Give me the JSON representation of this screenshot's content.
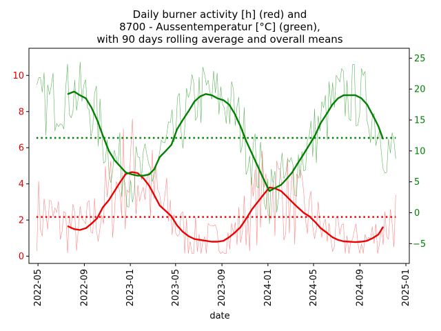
{
  "chart_data": {
    "type": "line",
    "title_lines": [
      "Daily burner activity [h] (red) and",
      "8700 - Aussentemperatur [°C] (green),",
      "with 90 days rolling average and overall means"
    ],
    "xlabel": "date",
    "x_ticks": [
      "2022-05",
      "2022-09",
      "2023-01",
      "2023-05",
      "2023-09",
      "2024-01",
      "2024-05",
      "2024-09",
      "2025-01"
    ],
    "x_range": [
      "2022-04-07",
      "2025-01-10"
    ],
    "y_left": {
      "ticks": [
        0,
        2,
        4,
        6,
        8,
        10
      ],
      "range": [
        -0.4,
        11.5
      ],
      "color": "#dd0000"
    },
    "y_right": {
      "ticks": [
        -5,
        0,
        5,
        10,
        15,
        20,
        25
      ],
      "range": [
        -8.2,
        26.6
      ],
      "color": "#008000"
    },
    "series": [
      {
        "name": "burner rolling average",
        "axis": "left",
        "color": "#ee0000",
        "x": [
          "2022-07-20",
          "2022-08-05",
          "2022-08-20",
          "2022-09-05",
          "2022-09-20",
          "2022-10-05",
          "2022-10-20",
          "2022-11-05",
          "2022-11-20",
          "2022-12-05",
          "2022-12-20",
          "2023-01-05",
          "2023-01-20",
          "2023-02-05",
          "2023-02-20",
          "2023-03-05",
          "2023-03-20",
          "2023-04-05",
          "2023-04-20",
          "2023-05-05",
          "2023-05-20",
          "2023-06-05",
          "2023-06-20",
          "2023-07-05",
          "2023-07-20",
          "2023-08-05",
          "2023-08-20",
          "2023-09-05",
          "2023-09-20",
          "2023-10-05",
          "2023-10-20",
          "2023-11-05",
          "2023-11-20",
          "2023-12-05",
          "2023-12-20",
          "2024-01-05",
          "2024-01-20",
          "2024-02-05",
          "2024-02-20",
          "2024-03-05",
          "2024-03-20",
          "2024-04-05",
          "2024-04-20",
          "2024-05-05",
          "2024-05-20",
          "2024-06-05",
          "2024-06-20",
          "2024-07-05",
          "2024-07-20",
          "2024-08-05",
          "2024-08-20",
          "2024-09-05",
          "2024-09-20",
          "2024-10-05",
          "2024-10-20",
          "2024-11-01"
        ],
        "y": [
          1.65,
          1.5,
          1.45,
          1.55,
          1.8,
          2.1,
          2.7,
          3.1,
          3.6,
          4.1,
          4.55,
          4.65,
          4.6,
          4.3,
          3.9,
          3.4,
          2.8,
          2.5,
          2.2,
          1.7,
          1.35,
          1.1,
          0.95,
          0.9,
          0.85,
          0.8,
          0.8,
          0.85,
          1.05,
          1.3,
          1.6,
          2.1,
          2.6,
          3.0,
          3.4,
          3.8,
          3.75,
          3.6,
          3.3,
          3.0,
          2.7,
          2.4,
          2.2,
          1.9,
          1.55,
          1.3,
          1.05,
          0.9,
          0.82,
          0.8,
          0.78,
          0.8,
          0.85,
          1.0,
          1.2,
          1.6
        ]
      },
      {
        "name": "temperature rolling average",
        "axis": "right",
        "color": "#008000",
        "x": [
          "2022-07-20",
          "2022-08-05",
          "2022-08-20",
          "2022-09-05",
          "2022-09-20",
          "2022-10-05",
          "2022-10-20",
          "2022-11-05",
          "2022-11-20",
          "2022-12-05",
          "2022-12-20",
          "2023-01-05",
          "2023-01-20",
          "2023-02-05",
          "2023-02-20",
          "2023-03-05",
          "2023-03-20",
          "2023-04-05",
          "2023-04-20",
          "2023-05-05",
          "2023-05-20",
          "2023-06-05",
          "2023-06-20",
          "2023-07-05",
          "2023-07-20",
          "2023-08-05",
          "2023-08-20",
          "2023-09-05",
          "2023-09-20",
          "2023-10-05",
          "2023-10-20",
          "2023-11-05",
          "2023-11-20",
          "2023-12-05",
          "2023-12-20",
          "2024-01-05",
          "2024-01-20",
          "2024-02-05",
          "2024-02-20",
          "2024-03-05",
          "2024-03-20",
          "2024-04-05",
          "2024-04-20",
          "2024-05-05",
          "2024-05-20",
          "2024-06-05",
          "2024-06-20",
          "2024-07-05",
          "2024-07-20",
          "2024-08-05",
          "2024-08-20",
          "2024-09-05",
          "2024-09-20",
          "2024-10-05",
          "2024-10-20",
          "2024-11-01"
        ],
        "y": [
          19.2,
          19.6,
          19.0,
          18.5,
          17.0,
          15.0,
          12.5,
          10.0,
          8.5,
          7.5,
          6.5,
          6.2,
          6.0,
          6.0,
          6.2,
          7.0,
          9.0,
          10.0,
          11.0,
          13.5,
          15.0,
          16.5,
          18.0,
          18.8,
          19.2,
          19.0,
          18.5,
          18.2,
          17.5,
          16.0,
          14.0,
          11.5,
          9.5,
          7.5,
          5.5,
          3.5,
          4.0,
          4.5,
          5.5,
          6.5,
          8.0,
          9.5,
          11.0,
          12.5,
          14.5,
          16.0,
          17.5,
          18.5,
          19.0,
          19.0,
          19.0,
          18.5,
          17.5,
          15.8,
          14.0,
          12.0
        ]
      },
      {
        "name": "burner overall mean",
        "axis": "left",
        "style": "dotted",
        "color": "#ee0000",
        "x": [
          "2022-04-27",
          "2024-12-05"
        ],
        "y": [
          2.17,
          2.17
        ]
      },
      {
        "name": "temperature overall mean",
        "axis": "right",
        "style": "dotted",
        "color": "#008000",
        "x": [
          "2022-04-27",
          "2024-12-05"
        ],
        "y": [
          12.1,
          12.1
        ]
      }
    ],
    "daily_series": [
      {
        "name": "burner daily",
        "axis": "left",
        "color": "#ff6666",
        "x_start": "2022-04-28",
        "x_end": "2024-12-05",
        "samples": 200
      },
      {
        "name": "temperature daily",
        "axis": "right",
        "color": "#33a033",
        "x_start": "2022-04-28",
        "x_end": "2024-12-05",
        "samples": 200
      }
    ],
    "grid": false,
    "legend": "none"
  }
}
